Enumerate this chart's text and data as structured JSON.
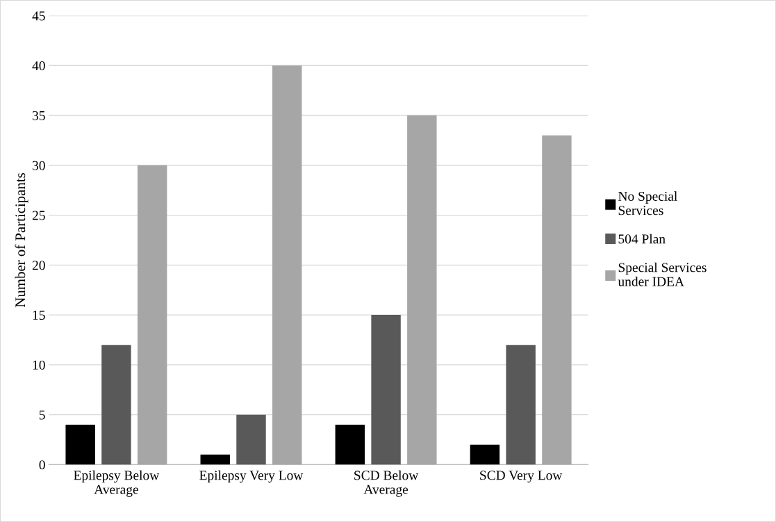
{
  "chart_data": {
    "type": "bar",
    "ylabel": "Number of Participants",
    "categories": [
      "Epilepsy Below\nAverage",
      "Epilepsy Very Low",
      "SCD Below\nAverage",
      "SCD Very Low"
    ],
    "series": [
      {
        "name": "No Special\nServices",
        "color": "#000000",
        "values": [
          4,
          1,
          4,
          2
        ]
      },
      {
        "name": "504 Plan",
        "color": "#595959",
        "values": [
          12,
          5,
          15,
          12
        ]
      },
      {
        "name": "Special Services\nunder IDEA",
        "color": "#a6a6a6",
        "values": [
          30,
          40,
          35,
          33
        ]
      }
    ],
    "ylim": [
      0,
      45
    ],
    "yticks": [
      0,
      5,
      10,
      15,
      20,
      25,
      30,
      35,
      40,
      45
    ],
    "grid": "y",
    "legend": "right"
  }
}
